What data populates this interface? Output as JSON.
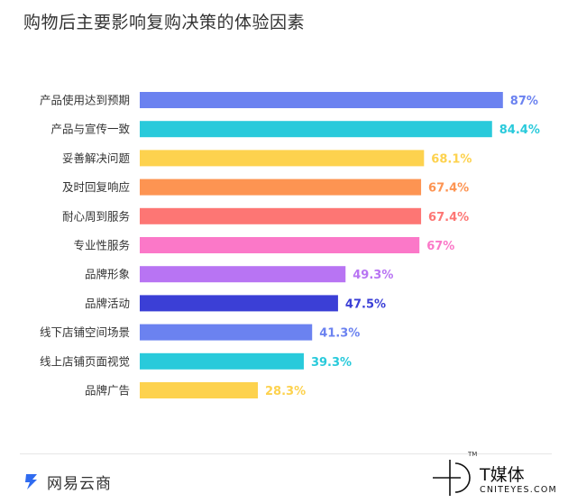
{
  "chart_data": {
    "type": "bar",
    "orientation": "horizontal",
    "title": "购物后主要影响复购决策的体验因素",
    "categories": [
      "产品使用达到预期",
      "产品与宣传一致",
      "妥善解决问题",
      "及时回复响应",
      "耐心周到服务",
      "专业性服务",
      "品牌形象",
      "品牌活动",
      "线下店铺空间场景",
      "线上店铺页面视觉",
      "品牌广告"
    ],
    "values": [
      87,
      84.4,
      68.1,
      67.4,
      67.4,
      67,
      49.3,
      47.5,
      41.3,
      39.3,
      28.3
    ],
    "value_labels": [
      "87%",
      "84.4%",
      "68.1%",
      "67.4%",
      "67.4%",
      "67%",
      "49.3%",
      "47.5%",
      "41.3%",
      "39.3%",
      "28.3%"
    ],
    "colors": [
      "#6b82f0",
      "#29cadb",
      "#fdd24e",
      "#fd9452",
      "#fd7674",
      "#fb78c8",
      "#b874f3",
      "#3b3fd6",
      "#6b82f0",
      "#29cadb",
      "#fdd24e"
    ],
    "xlim": [
      0,
      100
    ],
    "grid": false,
    "legend": "none"
  },
  "footer": {
    "left_logo": "网易云商",
    "right_logo_cn": "T媒体",
    "right_logo_en": "CNITEYES.COM",
    "right_logo_tm": "TM"
  }
}
